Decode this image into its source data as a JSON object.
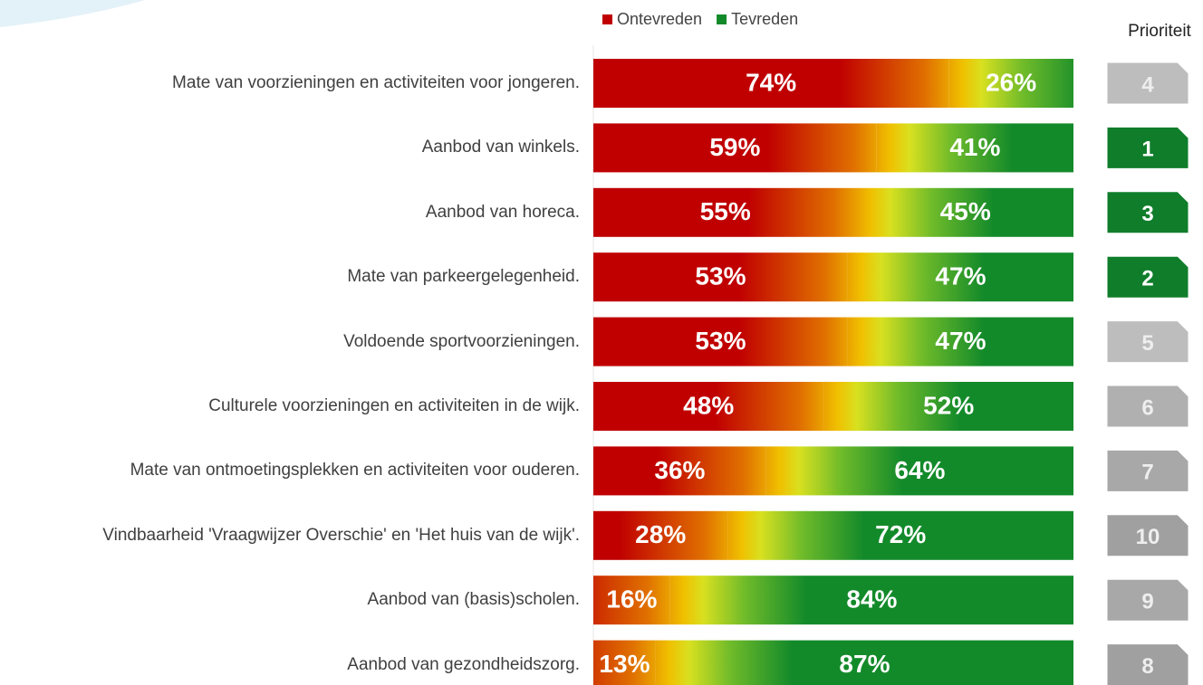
{
  "chart_data": {
    "type": "stacked-bar-horizontal",
    "categories": [
      "Mate van voorzieningen en activiteiten voor jongeren.",
      "Aanbod van winkels.",
      "Aanbod van horeca.",
      "Mate van parkeergelegenheid.",
      "Voldoende sportvoorzieningen.",
      "Culturele voorzieningen en activiteiten in de wijk.",
      "Mate van ontmoetingsplekken en activiteiten voor ouderen.",
      "Vindbaarheid 'Vraagwijzer Overschie' en 'Het huis van de wijk'.",
      "Aanbod van (basis)scholen.",
      "Aanbod van gezondheidszorg."
    ],
    "series": [
      {
        "name": "Ontevreden",
        "color": "#c00000",
        "values": [
          74,
          59,
          55,
          53,
          53,
          48,
          36,
          28,
          16,
          13
        ],
        "value_labels": [
          "74%",
          "59%",
          "55%",
          "53%",
          "53%",
          "48%",
          "36%",
          "28%",
          "16%",
          "13%"
        ]
      },
      {
        "name": "Tevreden",
        "color": "#138a2a",
        "values": [
          26,
          41,
          45,
          47,
          47,
          52,
          64,
          72,
          84,
          87
        ],
        "value_labels": [
          "26%",
          "41%",
          "45%",
          "47%",
          "47%",
          "52%",
          "64%",
          "72%",
          "84%",
          "87%"
        ]
      }
    ],
    "xlim": [
      0,
      100
    ],
    "legend": "top",
    "priority_title": "Prioriteit",
    "priorities": [
      4,
      1,
      3,
      2,
      5,
      6,
      7,
      10,
      9,
      8
    ],
    "priority_colors": [
      "#bdbdbd",
      "#0f7d2a",
      "#0f7d2a",
      "#0f7d2a",
      "#bdbdbd",
      "#b0b0b0",
      "#a8a8a8",
      "#a0a0a0",
      "#a8a8a8",
      "#a0a0a0"
    ]
  }
}
